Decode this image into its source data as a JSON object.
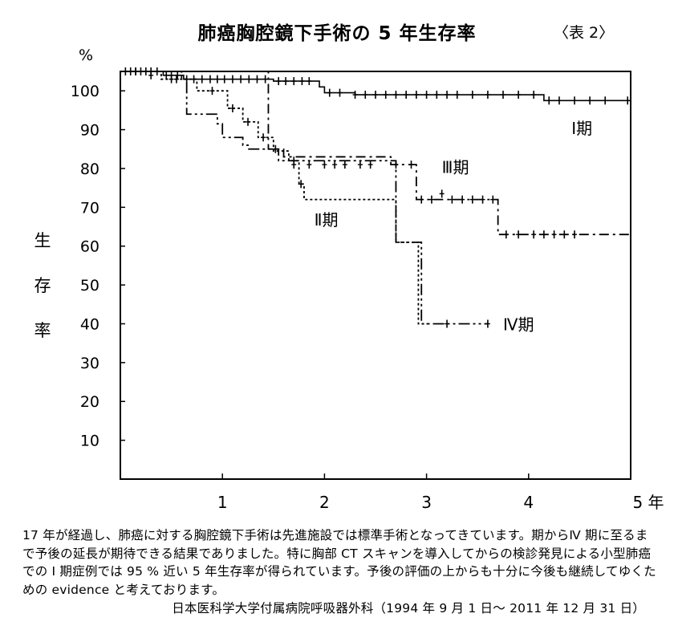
{
  "chart_data": {
    "type": "line",
    "title": "肺癌胸腔鏡下手術の 5 年生存率",
    "table_label": "〈表 2〉",
    "y_unit": "%",
    "ylabel": "生存率",
    "ylabel_chars": [
      "生",
      "存",
      "率"
    ],
    "xlabel": "",
    "xlim": [
      0,
      5
    ],
    "ylim": [
      0,
      105
    ],
    "x_ticks": [
      {
        "value": 1,
        "label": "1"
      },
      {
        "value": 2,
        "label": "2"
      },
      {
        "value": 3,
        "label": "3"
      },
      {
        "value": 4,
        "label": "4"
      },
      {
        "value": 5,
        "label": "5 年"
      }
    ],
    "y_ticks": [
      {
        "value": 100,
        "label": "100"
      },
      {
        "value": 90,
        "label": "90"
      },
      {
        "value": 80,
        "label": "80"
      },
      {
        "value": 70,
        "label": "70"
      },
      {
        "value": 60,
        "label": "60"
      },
      {
        "value": 50,
        "label": "50"
      },
      {
        "value": 40,
        "label": "40"
      },
      {
        "value": 30,
        "label": "30"
      },
      {
        "value": 20,
        "label": "20"
      },
      {
        "value": 10,
        "label": "10"
      }
    ],
    "grid": false,
    "series": [
      {
        "name": "Ⅰ期",
        "style": "solid",
        "steps": [
          [
            0,
            105
          ],
          [
            0.42,
            104
          ],
          [
            0.62,
            103
          ],
          [
            1.5,
            102.5
          ],
          [
            1.95,
            101
          ],
          [
            2.0,
            99.5
          ],
          [
            2.3,
            99
          ],
          [
            4.15,
            97.5
          ],
          [
            5.0,
            97.5
          ]
        ],
        "censored": [
          [
            0.05,
            105
          ],
          [
            0.1,
            105
          ],
          [
            0.15,
            105
          ],
          [
            0.2,
            105
          ],
          [
            0.25,
            105
          ],
          [
            0.3,
            105
          ],
          [
            0.36,
            105
          ],
          [
            0.45,
            104
          ],
          [
            0.5,
            104
          ],
          [
            0.56,
            104
          ],
          [
            0.65,
            103
          ],
          [
            0.72,
            103
          ],
          [
            0.8,
            103
          ],
          [
            0.88,
            103
          ],
          [
            0.95,
            103
          ],
          [
            1.02,
            103
          ],
          [
            1.1,
            103
          ],
          [
            1.18,
            103
          ],
          [
            1.26,
            103
          ],
          [
            1.34,
            103
          ],
          [
            1.42,
            103
          ],
          [
            1.55,
            102.5
          ],
          [
            1.62,
            102.5
          ],
          [
            1.7,
            102.5
          ],
          [
            1.78,
            102.5
          ],
          [
            1.85,
            102.5
          ],
          [
            2.05,
            99.5
          ],
          [
            2.15,
            99.5
          ],
          [
            2.3,
            99
          ],
          [
            2.4,
            99
          ],
          [
            2.5,
            99
          ],
          [
            2.6,
            99
          ],
          [
            2.7,
            99
          ],
          [
            2.8,
            99
          ],
          [
            2.9,
            99
          ],
          [
            3.0,
            99
          ],
          [
            3.1,
            99
          ],
          [
            3.2,
            99
          ],
          [
            3.3,
            99
          ],
          [
            3.45,
            99
          ],
          [
            3.6,
            99
          ],
          [
            3.75,
            99
          ],
          [
            3.9,
            99
          ],
          [
            4.05,
            99
          ],
          [
            4.2,
            97.5
          ],
          [
            4.3,
            97.5
          ],
          [
            4.45,
            97.5
          ],
          [
            4.6,
            97.5
          ],
          [
            4.75,
            97.5
          ],
          [
            4.97,
            97.5
          ]
        ]
      },
      {
        "name": "Ⅱ期",
        "style": "dotted",
        "steps": [
          [
            0,
            105
          ],
          [
            0.4,
            103
          ],
          [
            0.75,
            100
          ],
          [
            1.05,
            95.5
          ],
          [
            1.2,
            92
          ],
          [
            1.35,
            88
          ],
          [
            1.5,
            84.5
          ],
          [
            1.65,
            82
          ],
          [
            1.75,
            76
          ],
          [
            1.8,
            72
          ],
          [
            2.7,
            72
          ],
          [
            2.7,
            61
          ],
          [
            2.92,
            61
          ],
          [
            2.92,
            40
          ],
          [
            3.02,
            40
          ]
        ],
        "censored": [
          [
            0.15,
            105
          ],
          [
            0.3,
            104
          ],
          [
            0.5,
            103
          ],
          [
            0.55,
            103
          ],
          [
            0.9,
            100
          ],
          [
            1.1,
            95.5
          ],
          [
            1.25,
            92
          ],
          [
            1.4,
            88
          ],
          [
            1.7,
            82
          ],
          [
            1.77,
            76
          ]
        ]
      },
      {
        "name": "Ⅲ期",
        "style": "dashdot",
        "steps": [
          [
            0,
            105
          ],
          [
            1.45,
            105
          ],
          [
            1.45,
            85
          ],
          [
            1.55,
            85
          ],
          [
            1.6,
            83
          ],
          [
            2.65,
            83
          ],
          [
            2.65,
            81
          ],
          [
            2.9,
            81
          ],
          [
            2.9,
            72
          ],
          [
            3.7,
            72
          ],
          [
            3.7,
            63
          ],
          [
            5.0,
            63
          ]
        ],
        "censored": [
          [
            1.52,
            85
          ],
          [
            1.7,
            81
          ],
          [
            1.85,
            81
          ],
          [
            2.0,
            81
          ],
          [
            2.1,
            81
          ],
          [
            2.2,
            81
          ],
          [
            2.35,
            81
          ],
          [
            2.45,
            81
          ],
          [
            2.7,
            81
          ],
          [
            2.85,
            81
          ],
          [
            2.95,
            72
          ],
          [
            3.05,
            72
          ],
          [
            3.15,
            73.5
          ],
          [
            3.25,
            72
          ],
          [
            3.35,
            72
          ],
          [
            3.45,
            72
          ],
          [
            3.55,
            72
          ],
          [
            3.65,
            72
          ],
          [
            3.78,
            63
          ],
          [
            3.9,
            63
          ],
          [
            4.05,
            63
          ],
          [
            4.15,
            63
          ],
          [
            4.25,
            63
          ],
          [
            4.35,
            63
          ],
          [
            4.45,
            63
          ]
        ]
      },
      {
        "name": "Ⅳ期",
        "style": "dashdotdot",
        "steps": [
          [
            0,
            105
          ],
          [
            0.6,
            103
          ],
          [
            0.65,
            94
          ],
          [
            0.9,
            94
          ],
          [
            0.95,
            91.5
          ],
          [
            1.0,
            88
          ],
          [
            1.2,
            86
          ],
          [
            1.25,
            85
          ],
          [
            1.45,
            85
          ],
          [
            1.55,
            85
          ],
          [
            1.55,
            82
          ],
          [
            2.7,
            82
          ],
          [
            2.7,
            61
          ],
          [
            2.95,
            61
          ],
          [
            2.95,
            40
          ],
          [
            3.6,
            40
          ]
        ],
        "censored": [
          [
            3.2,
            40
          ],
          [
            3.6,
            40
          ]
        ]
      }
    ],
    "series_labels": [
      {
        "series": "Ⅰ期",
        "text": "Ⅰ期",
        "x": 4.42,
        "y": 90.5
      },
      {
        "series": "Ⅲ期",
        "text": "Ⅲ期",
        "x": 3.15,
        "y": 80.5
      },
      {
        "series": "Ⅱ期",
        "text": "Ⅱ期",
        "x": 1.9,
        "y": 67
      },
      {
        "series": "Ⅳ期",
        "text": "Ⅳ期",
        "x": 3.75,
        "y": 40
      }
    ]
  },
  "body_text": "17 年が経過し、肺癌に対する胸腔鏡下手術は先進施設では標準手術となってきています。期からⅣ 期に至るまで予後の延長が期待できる結果でありました。特に胸部 CT スキャンを導入してからの検診発見による小型肺癌での I 期症例では 95 % 近い 5 年生存率が得られています。予後の評価の上からも十分に今後も継続してゆくための evidence と考えております。",
  "source": "日本医科学大学付属病院呼吸器外科（1994 年 9 月 1 日〜 2011 年 12 月 31 日）"
}
